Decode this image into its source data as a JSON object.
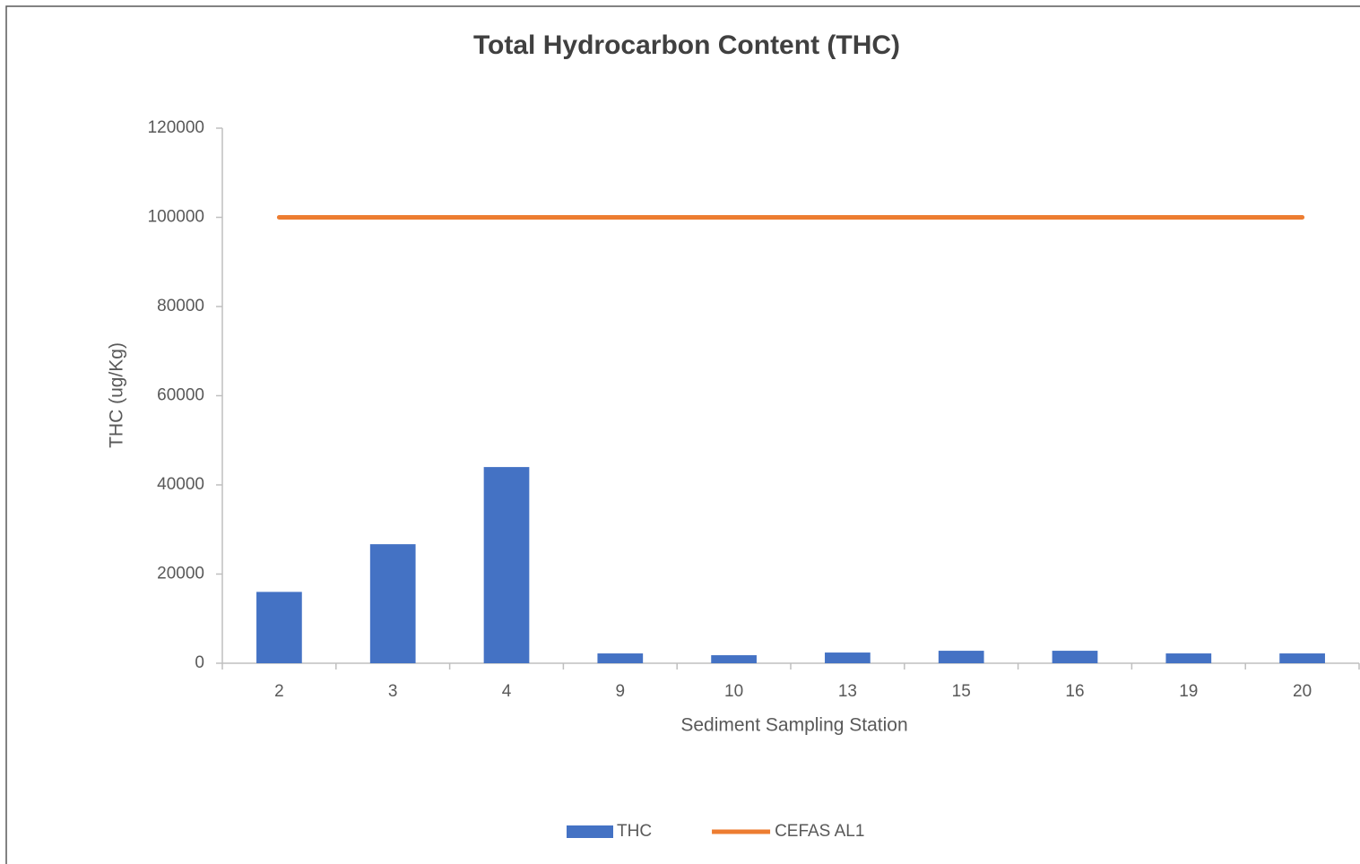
{
  "chart_data": {
    "type": "bar",
    "title": "Total Hydrocarbon Content (THC)",
    "x_label": "Sediment Sampling Station",
    "y_label": "THC (ug/Kg)",
    "categories": [
      "2",
      "3",
      "4",
      "9",
      "10",
      "13",
      "15",
      "16",
      "19",
      "20"
    ],
    "series": [
      {
        "name": "THC",
        "type": "bar",
        "color": "#4472c4",
        "values": [
          16000,
          26700,
          44000,
          2200,
          1800,
          2400,
          2800,
          2800,
          2200,
          2200
        ]
      },
      {
        "name": "CEFAS AL1",
        "type": "line",
        "color": "#ed7d31",
        "values": [
          100000,
          100000,
          100000,
          100000,
          100000,
          100000,
          100000,
          100000,
          100000,
          100000
        ]
      }
    ],
    "ylim": [
      0,
      120000
    ],
    "yticks": [
      0,
      20000,
      40000,
      60000,
      80000,
      100000,
      120000
    ],
    "grid": false,
    "legend": "bottom"
  }
}
